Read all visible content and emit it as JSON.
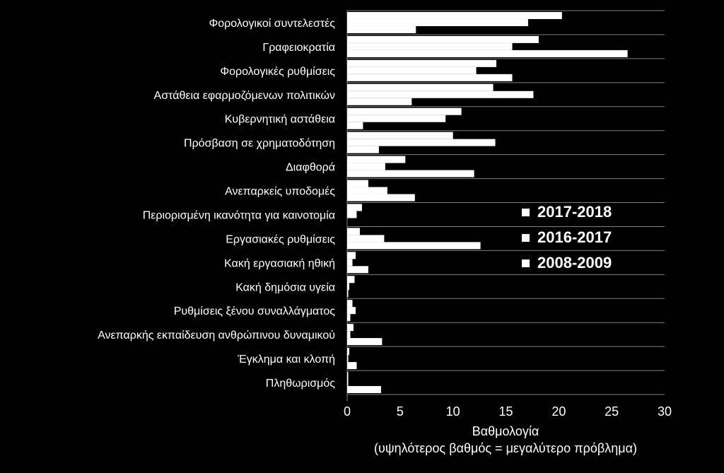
{
  "chart_data": {
    "type": "bar",
    "orientation": "horizontal",
    "categories": [
      "Φορολογικοί συντελεστές",
      "Γραφειοκρατία",
      "Φορολογικές ρυθμίσεις",
      "Αστάθεια εφαρμοζόμενων πολιτικών",
      "Κυβερνητική αστάθεια",
      "Πρόσβαση σε χρηματοδότηση",
      "Διαφθορά",
      "Ανεπαρκείς υποδομές",
      "Περιορισμένη ικανότητα για καινοτομία",
      "Εργασιακές ρυθμίσεις",
      "Κακή εργασιακή ηθική",
      "Κακή δημόσια υγεία",
      "Ρυθμίσεις ξένου συναλλάγματος",
      "Ανεπαρκής εκπαίδευση ανθρώπινου δυναμικού",
      "Έγκλημα και κλοπή",
      "Πληθωρισμός"
    ],
    "series": [
      {
        "name": "2017-2018",
        "values": [
          20.3,
          18.1,
          14.1,
          13.8,
          10.8,
          10.0,
          5.5,
          2.0,
          1.4,
          1.2,
          0.8,
          0.7,
          0.5,
          0.6,
          0.2,
          0.1
        ]
      },
      {
        "name": "2016-2017",
        "values": [
          17.1,
          15.6,
          12.2,
          17.6,
          9.3,
          14.0,
          3.6,
          3.8,
          0.9,
          3.5,
          0.5,
          0.2,
          0.8,
          0.3,
          0.1,
          0.1
        ]
      },
      {
        "name": "2008-2009",
        "values": [
          6.5,
          26.5,
          15.6,
          6.1,
          1.5,
          3.0,
          12.0,
          6.4,
          0.0,
          12.6,
          2.0,
          0.1,
          0.3,
          3.3,
          0.9,
          3.2
        ]
      }
    ],
    "xlim": [
      0,
      30
    ],
    "xticks": [
      "0",
      "5",
      "10",
      "15",
      "20",
      "25",
      "30"
    ],
    "xlabel": "Βαθμολογία",
    "xlabel_sub": "(υψηλότερος βαθμός = μεγαλύτερο πρόβλημα)",
    "legend_position": "right-middle",
    "gridlines": true,
    "colors": {
      "background": "#000000",
      "bars": "#ffffff",
      "text": "#ffffff",
      "grid": "#7f7f7f"
    }
  }
}
